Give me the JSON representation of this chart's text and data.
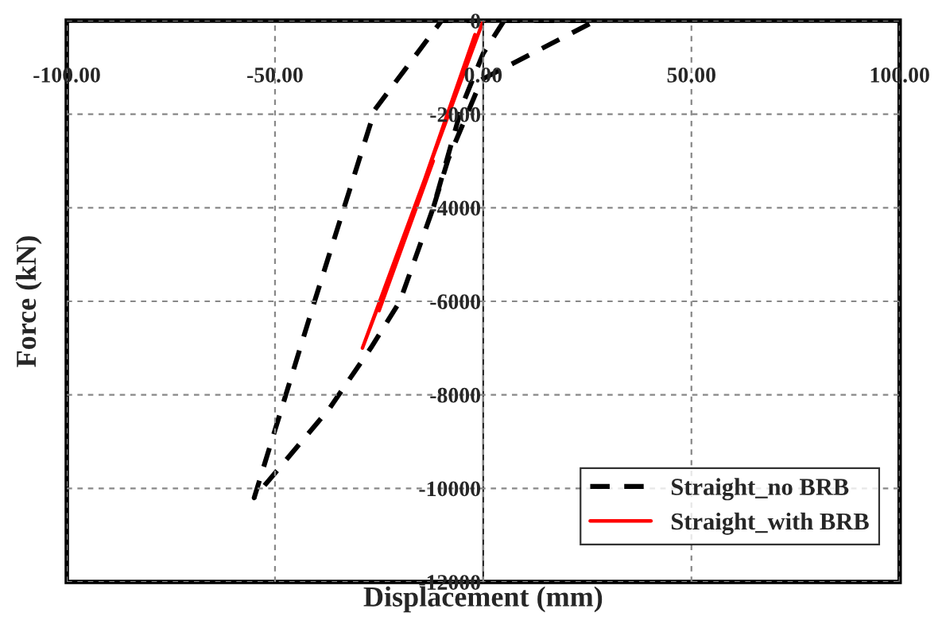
{
  "chart_data": {
    "type": "line",
    "xlabel": "Displacement (mm)",
    "ylabel": "Force (kN)",
    "xlim": [
      -100,
      100
    ],
    "ylim": [
      -12000,
      0
    ],
    "xticks": [
      {
        "value": -100,
        "label": "-100.00"
      },
      {
        "value": -50,
        "label": "-50.00"
      },
      {
        "value": 0,
        "label": "0.00"
      },
      {
        "value": 50,
        "label": "50.00"
      },
      {
        "value": 100,
        "label": "100.00"
      }
    ],
    "yticks": [
      -12000,
      -10000,
      -8000,
      -6000,
      -4000,
      -2000,
      0
    ],
    "grid": true,
    "legend": "bottom right",
    "series": [
      {
        "name": "Straight_no BRB",
        "color": "#000000",
        "line_style": "dashed",
        "x": [
          5,
          0,
          -5,
          -12,
          -20,
          -27,
          -37,
          -55,
          -40.5,
          -26,
          -10,
          27,
          -0.4,
          -8.4,
          -12
        ],
        "values": [
          0,
          -700,
          -1800,
          -4000,
          -6000,
          -7000,
          -8300,
          -10200,
          -6000,
          -1900,
          0,
          0,
          -1260,
          -2960,
          -4000
        ]
      },
      {
        "name": "Straight_with BRB",
        "color": "#ff0000",
        "line_style": "solid",
        "x": [
          0,
          -29,
          -12,
          -25,
          -2
        ],
        "values": [
          0,
          -7000,
          -3000,
          -6200,
          -300
        ]
      }
    ]
  }
}
